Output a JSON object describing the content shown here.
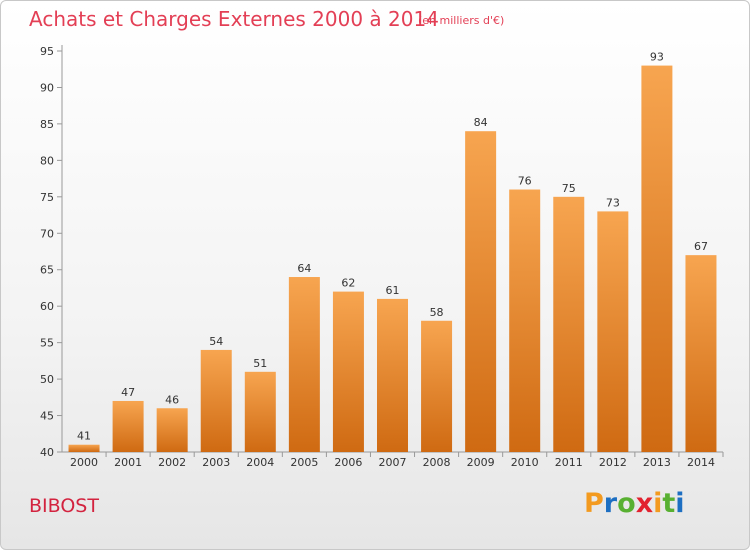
{
  "header": {
    "title": "Achats et Charges Externes 2000 à 2014",
    "unit": "(en milliers d'€)"
  },
  "commune": "BIBOST",
  "logo": {
    "text": "Proxiti",
    "letters": [
      {
        "char": "P",
        "color": "#f39a1f"
      },
      {
        "char": "r",
        "color": "#1d6fc2"
      },
      {
        "char": "o",
        "color": "#58b031"
      },
      {
        "char": "x",
        "color": "#e2222f"
      },
      {
        "char": "i",
        "color": "#f39a1f"
      },
      {
        "char": "t",
        "color": "#58b031"
      },
      {
        "char": "i",
        "color": "#1d6fc2"
      }
    ]
  },
  "chart_data": {
    "type": "bar",
    "title": "Achats et Charges Externes 2000 à 2014",
    "subtitle": "(en milliers d'€)",
    "xlabel": "",
    "ylabel": "",
    "categories": [
      "2000",
      "2001",
      "2002",
      "2003",
      "2004",
      "2005",
      "2006",
      "2007",
      "2008",
      "2009",
      "2010",
      "2011",
      "2012",
      "2013",
      "2014"
    ],
    "values": [
      41,
      47,
      46,
      54,
      51,
      64,
      62,
      61,
      58,
      84,
      76,
      75,
      73,
      93,
      67
    ],
    "ylim": [
      40,
      95
    ],
    "yticks": [
      40,
      45,
      50,
      55,
      60,
      65,
      70,
      75,
      80,
      85,
      90,
      95
    ],
    "grid": false,
    "bar_color": "#f39a1f"
  }
}
